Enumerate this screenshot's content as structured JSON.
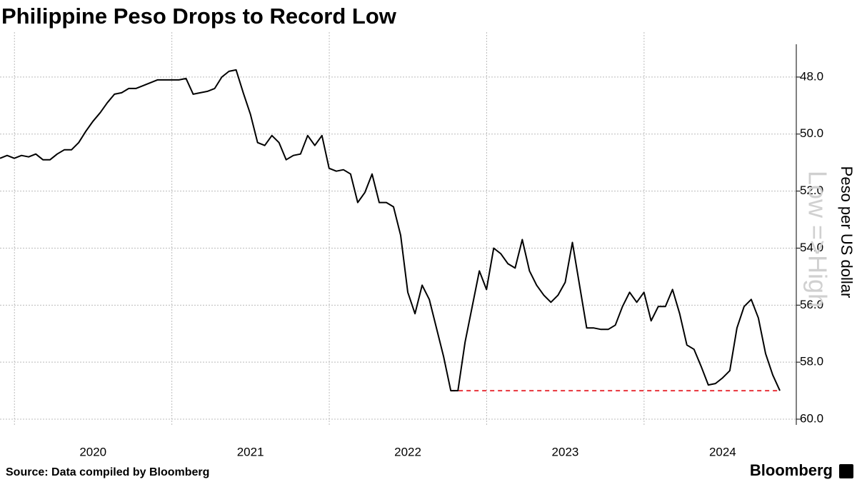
{
  "chart_data": {
    "type": "line",
    "title": "Philippine Peso Drops to Record Low",
    "y_axis_label": "Peso per US dollar",
    "annotation": "Low =>High",
    "source": "Source: Data compiled by Bloomberg",
    "brand": "Bloomberg",
    "categories": [
      null,
      null,
      null,
      null,
      null,
      null,
      null,
      null,
      null,
      null,
      null,
      null,
      null,
      "2020",
      null,
      null,
      null,
      null,
      null,
      null,
      null,
      null,
      null,
      null,
      null,
      null,
      null,
      null,
      null,
      null,
      null,
      null,
      null,
      null,
      null,
      "2021",
      null,
      null,
      null,
      null,
      null,
      null,
      null,
      null,
      null,
      null,
      null,
      null,
      null,
      null,
      null,
      null,
      null,
      null,
      null,
      null,
      null,
      "2022",
      null,
      null,
      null,
      null,
      null,
      null,
      null,
      null,
      null,
      null,
      null,
      null,
      null,
      null,
      null,
      null,
      null,
      null,
      null,
      null,
      null,
      "2023",
      null,
      null,
      null,
      null,
      null,
      null,
      null,
      null,
      null,
      null,
      null,
      null,
      null,
      null,
      null,
      null,
      null,
      null,
      null,
      null,
      null,
      "2024",
      null,
      null,
      null,
      null,
      null,
      null,
      null,
      null
    ],
    "series": [
      {
        "name": "Peso per US dollar",
        "color": "#000000",
        "values": [
          50.85,
          50.75,
          50.85,
          50.75,
          50.8,
          50.7,
          50.9,
          50.9,
          50.7,
          50.55,
          50.55,
          50.3,
          49.9,
          49.55,
          49.25,
          48.9,
          48.6,
          48.55,
          48.4,
          48.4,
          48.3,
          48.2,
          48.1,
          48.1,
          48.1,
          48.1,
          48.05,
          48.6,
          48.55,
          48.5,
          48.4,
          48.0,
          47.8,
          47.75,
          48.55,
          49.3,
          50.3,
          50.4,
          50.05,
          50.3,
          50.9,
          50.75,
          50.7,
          50.05,
          50.4,
          50.05,
          51.2,
          51.3,
          51.25,
          51.4,
          52.4,
          52.05,
          51.4,
          52.4,
          52.4,
          52.55,
          53.55,
          55.55,
          56.3,
          55.3,
          55.8,
          56.8,
          57.8,
          59.0,
          59.0,
          57.3,
          56.05,
          54.8,
          55.45,
          54.0,
          54.2,
          54.55,
          54.7,
          53.7,
          54.8,
          55.3,
          55.65,
          55.9,
          55.65,
          55.2,
          53.8,
          55.3,
          56.8,
          56.8,
          56.85,
          56.85,
          56.7,
          56.05,
          55.55,
          55.9,
          55.55,
          56.55,
          56.05,
          56.05,
          55.45,
          56.3,
          57.4,
          57.55,
          58.15,
          58.8,
          58.75,
          58.55,
          58.3,
          56.8,
          56.05,
          55.8,
          56.45,
          57.7,
          58.45,
          59.0
        ]
      }
    ],
    "ylim": [
      46.85,
      60.2
    ],
    "y_inverted": true,
    "yticks": [
      {
        "value": 48,
        "label": "48.0"
      },
      {
        "value": 50,
        "label": "50.0"
      },
      {
        "value": 52,
        "label": "52.0"
      },
      {
        "value": 54,
        "label": "54.0"
      },
      {
        "value": 56,
        "label": "56.0"
      },
      {
        "value": 58,
        "label": "58.0"
      },
      {
        "value": 60,
        "label": "60.0"
      }
    ],
    "reference_line": {
      "value": 59.0,
      "color": "#e8333a"
    },
    "grid": true
  }
}
